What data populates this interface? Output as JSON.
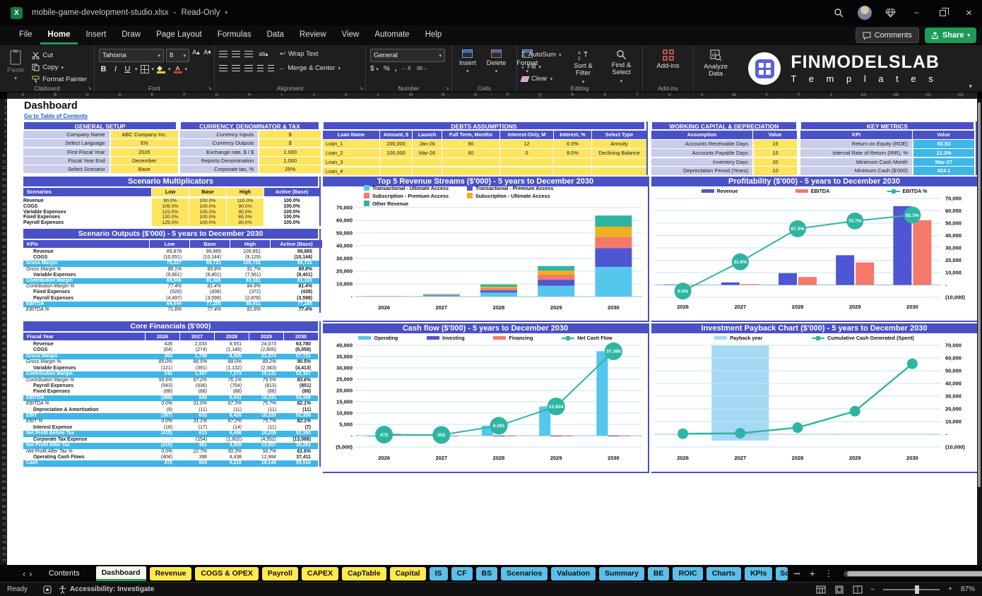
{
  "window": {
    "title": "mobile-game-development-studio.xlsx",
    "mode_label": "Read-Only",
    "comments": "Comments",
    "share": "Share"
  },
  "icons": {
    "chevron_down": "▾",
    "nav_left": "‹",
    "nav_right": "›",
    "more": "•••",
    "plus": "+",
    "kebab": "⋮",
    "minimize": "–",
    "close": "×",
    "dash": "-",
    "sigma": "Σ",
    "dollar": "$",
    "percent": "%",
    "comma": ",",
    "bold": "B",
    "italic": "I",
    "underline": "U",
    "font_up": "A▴",
    "font_down": "A▾",
    "dec_inc": "←.0",
    "dec_dec": ".00→",
    "wrap_arrow": "↩",
    "merge_arrow": "↔",
    "excel_x": "X",
    "fill_down": "⤓",
    "orientation": "ab▴"
  },
  "menu": {
    "items": [
      "File",
      "Home",
      "Insert",
      "Draw",
      "Page Layout",
      "Formulas",
      "Data",
      "Review",
      "View",
      "Automate",
      "Help"
    ],
    "active_index": 1
  },
  "ribbon": {
    "clipboard": {
      "group": "Clipboard",
      "paste": "Paste",
      "cut": "Cut",
      "copy": "Copy",
      "format_painter": "Format Painter"
    },
    "font": {
      "group": "Font",
      "font_name": "Tahoma",
      "font_size": "8"
    },
    "alignment": {
      "group": "Alignment",
      "wrap_text": "Wrap Text",
      "merge_center": "Merge & Center"
    },
    "number": {
      "group": "Number",
      "format": "General"
    },
    "cells": {
      "group": "Cells",
      "insert": "Insert",
      "delete": "Delete",
      "format": "Format"
    },
    "editing": {
      "group": "Editing",
      "autosum": "AutoSum",
      "fill": "Fill",
      "clear": "Clear",
      "sort_filter": "Sort & Filter",
      "find_select": "Find & Select"
    },
    "addins": {
      "group": "Add-ins",
      "addins": "Add-ins",
      "analyze": "Analyze Data"
    },
    "logo": {
      "line1": "FINMODELSLAB",
      "line2": "T e m p l a t e s"
    }
  },
  "grid": {
    "column_letters": [
      "A",
      "B",
      "C",
      "D",
      "E",
      "F",
      "G",
      "H",
      "I",
      "J",
      "K",
      "L",
      "M",
      "N",
      "O",
      "P",
      "Q",
      "R",
      "S",
      "T",
      "U",
      "V",
      "W",
      "X",
      "Y",
      "Z",
      "AA",
      "AB",
      "AC",
      "AD"
    ],
    "row_count": 77
  },
  "page": {
    "title": "Dashboard",
    "toc_link": "Go to Table of Contents"
  },
  "colors": {
    "accent_blue": "#4a51c6",
    "highlight_cyan": "#3db6e8",
    "input_yellow": "#ffe45e",
    "label_lavender": "#c9cde9",
    "teal": "#2eb5a2",
    "tab_yellow": "#ffe94d",
    "tab_blue": "#5ac0ea",
    "share_green": "#1f9b57"
  },
  "tables": {
    "general_setup": {
      "title": "GENERAL SETUP",
      "rows": [
        [
          "Company Name",
          "ABC Company Inc."
        ],
        [
          "Select Language",
          "EN"
        ],
        [
          "First Fiscal Year",
          "2026"
        ],
        [
          "Fiscal Year End",
          "December"
        ],
        [
          "Select Scenario",
          "Base"
        ]
      ]
    },
    "currency_tax": {
      "title": "CURRENCY, DENOMINATOR & TAX",
      "rows": [
        [
          "Currency Inputs",
          "$"
        ],
        [
          "Currency Outputs",
          "$"
        ],
        [
          "Exchange rate, $ / $",
          "1.000"
        ],
        [
          "Reports Denomination",
          "1,000"
        ],
        [
          "Corporate tax, %",
          "25%"
        ]
      ]
    },
    "debts": {
      "title": "DEBTS ASSUMPTIONS",
      "columns": [
        "Loan Name",
        "Amount, $",
        "Launch",
        "Full Term, Months",
        "Interest-Only, M",
        "Interest, %",
        "Select Type"
      ],
      "rows": [
        [
          "Loan_1",
          "200,000",
          "Jan-26",
          "90",
          "12",
          "6.0%",
          "Annuity"
        ],
        [
          "Loan_2",
          "100,000",
          "Mar-26",
          "60",
          "0",
          "8.0%",
          "Declining Balance"
        ],
        [
          "Loan_3",
          "",
          "",
          "",
          "",
          "",
          ""
        ],
        [
          "Loan_4",
          "",
          "",
          "",
          "",
          "",
          ""
        ]
      ]
    },
    "working_capital": {
      "title": "WORKING CAPITAL & DEPRECIATION",
      "columns": [
        "Assumption",
        "Value"
      ],
      "rows": [
        [
          "Accounts Receivable Days",
          "15"
        ],
        [
          "Accounts Payable Days",
          "15"
        ],
        [
          "Inventory Days",
          "20"
        ],
        [
          "Depreciation Period (Years)",
          "10"
        ]
      ]
    },
    "key_metrics": {
      "title": "KEY METRICS",
      "columns": [
        "KPI",
        "Value"
      ],
      "rows": [
        [
          "Return on Equity (ROE)",
          "82.53"
        ],
        [
          "Internal Rate of Return (IRR), %",
          "12.3%"
        ],
        [
          "Minimum Cash Month",
          "Mar-27"
        ],
        [
          "Minimum Cash ($'000)",
          "424.1"
        ]
      ]
    },
    "scenario_multiplicators": {
      "title": "Scenario Multiplicators",
      "header": [
        "Scenarios",
        "Low",
        "Base",
        "High",
        "Active (Base)"
      ],
      "rows": [
        [
          "Revenue",
          "90.0%",
          "100.0%",
          "110.0%",
          "100.0%"
        ],
        [
          "COGS",
          "105.0%",
          "100.0%",
          "90.0%",
          "100.0%"
        ],
        [
          "Variable Expenses",
          "115.0%",
          "100.0%",
          "90.0%",
          "100.0%"
        ],
        [
          "Fixed Expenses",
          "120.0%",
          "100.0%",
          "85.0%",
          "100.0%"
        ],
        [
          "Payroll Expenses",
          "125.0%",
          "100.0%",
          "80.0%",
          "100.0%"
        ]
      ]
    },
    "scenario_outputs": {
      "title": "Scenario Outputs ($'000) - 5 years to December 2030",
      "header": [
        "KPIs",
        "Low",
        "Base",
        "High",
        "Active (Base)"
      ],
      "rows": [
        {
          "label": "Revenue",
          "style": "n",
          "values": [
            "89,878",
            "99,865",
            "109,851",
            "99,865"
          ]
        },
        {
          "label": "COGS",
          "style": "n",
          "values": [
            "(10,651)",
            "(10,144)",
            "(9,129)",
            "(10,144)"
          ]
        },
        {
          "label": "Gross Margin",
          "style": "h",
          "values": [
            "79,227",
            "89,721",
            "100,722",
            "89,721"
          ]
        },
        {
          "label": "Gross Margin %",
          "style": "i",
          "values": [
            "88.1%",
            "89.8%",
            "91.7%",
            "89.8%"
          ]
        },
        {
          "label": "Variable Expenses",
          "style": "n",
          "values": [
            "(9,661)",
            "(8,401)",
            "(7,561)",
            "(8,401)"
          ]
        },
        {
          "label": "Contribution Margin",
          "style": "h",
          "values": [
            "69,566",
            "81,320",
            "93,161",
            "81,320"
          ]
        },
        {
          "label": "Contribution Margin %",
          "style": "i",
          "values": [
            "77.4%",
            "81.4%",
            "84.8%",
            "81.4%"
          ]
        },
        {
          "label": "Fixed Expenses",
          "style": "n",
          "values": [
            "(526)",
            "(438)",
            "(372)",
            "(438)"
          ]
        },
        {
          "label": "Payroll Expenses",
          "style": "n",
          "values": [
            "(4,497)",
            "(3,598)",
            "(2,878)",
            "(3,598)"
          ]
        },
        {
          "label": "EBITDA",
          "style": "h",
          "values": [
            "64,544",
            "77,285",
            "89,911",
            "77,285"
          ]
        },
        {
          "label": "EBITDA %",
          "style": "i",
          "values": [
            "71.8%",
            "77.4%",
            "81.8%",
            "77.4%"
          ]
        }
      ]
    },
    "core_financials": {
      "title": "Core Financials ($'000)",
      "header": [
        "Fiscal Year",
        "2026",
        "2027",
        "2028",
        "2029",
        "2030"
      ],
      "rows": [
        {
          "label": "Revenue",
          "style": "n",
          "values": [
            "428",
            "2,033",
            "9,551",
            "24,073",
            "63,780"
          ]
        },
        {
          "label": "COGS",
          "style": "n",
          "values": [
            "(64)",
            "(274)",
            "(1,146)",
            "(2,600)",
            "(6,059)"
          ]
        },
        {
          "label": "Gross Margin",
          "style": "h",
          "values": [
            "364",
            "1,758",
            "8,405",
            "21,474",
            "57,721"
          ]
        },
        {
          "label": "Gross Margin %",
          "style": "i",
          "values": [
            "85.0%",
            "86.5%",
            "88.0%",
            "89.2%",
            "90.5%"
          ]
        },
        {
          "label": "Variable Expenses",
          "style": "n",
          "values": [
            "(121)",
            "(391)",
            "(1,132)",
            "(2,343)",
            "(4,413)"
          ]
        },
        {
          "label": "Contribution Margin",
          "style": "h",
          "values": [
            "242",
            "1,367",
            "7,273",
            "19,131",
            "53,307"
          ]
        },
        {
          "label": "Contribution Margin %",
          "style": "i",
          "values": [
            "56.6%",
            "67.2%",
            "76.1%",
            "79.5%",
            "83.6%"
          ]
        },
        {
          "label": "Payroll Expenses",
          "style": "n",
          "values": [
            "(543)",
            "(636)",
            "(754)",
            "(813)",
            "(851)"
          ]
        },
        {
          "label": "Fixed Expenses",
          "style": "n",
          "values": [
            "(88)",
            "(88)",
            "(88)",
            "(88)",
            "(88)"
          ]
        },
        {
          "label": "EBITDA",
          "style": "h",
          "values": [
            "(388)",
            "643",
            "6,431",
            "18,231",
            "52,368"
          ]
        },
        {
          "label": "EBITDA %",
          "style": "i",
          "values": [
            "0.0%",
            "31.6%",
            "67.3%",
            "75.7%",
            "82.1%"
          ]
        },
        {
          "label": "Depreciation & Amortization",
          "style": "n",
          "values": [
            "(9)",
            "(11)",
            "(11)",
            "(11)",
            "(11)"
          ]
        },
        {
          "label": "EBIT",
          "style": "h",
          "values": [
            "(397)",
            "632",
            "6,420",
            "18,220",
            "52,358"
          ]
        },
        {
          "label": "EBIT %",
          "style": "i",
          "values": [
            "0.0%",
            "31.1%",
            "67.2%",
            "75.7%",
            "82.1%"
          ]
        },
        {
          "label": "Interest Expense",
          "style": "n",
          "values": [
            "(18)",
            "(17)",
            "(14)",
            "(11)",
            "(7)"
          ]
        },
        {
          "label": "Net Profit Before Tax",
          "style": "h",
          "values": [
            "(415)",
            "615",
            "6,406",
            "18,209",
            "52,350"
          ]
        },
        {
          "label": "Corporate Tax Expense",
          "style": "n",
          "values": [
            "-",
            "(154)",
            "(1,602)",
            "(4,552)",
            "(13,088)"
          ]
        },
        {
          "label": "Net Profit After Tax",
          "style": "h",
          "values": [
            "(415)",
            "461",
            "4,805",
            "13,657",
            "39,263"
          ]
        },
        {
          "label": "Net Profit After Tax %",
          "style": "i",
          "values": [
            "0.0%",
            "22.7%",
            "50.3%",
            "56.7%",
            "61.6%"
          ]
        },
        {
          "label": "Operating Cash Flows",
          "style": "n",
          "values": [
            "(404)",
            "398",
            "4,438",
            "12,984",
            "37,411"
          ]
        },
        {
          "label": "Cash",
          "style": "h",
          "values": [
            "472",
            "824",
            "5,215",
            "18,149",
            "55,510"
          ]
        }
      ]
    }
  },
  "chart_data": [
    {
      "type": "bar",
      "subtype": "stacked",
      "title": "Top 5 Revenue Streams ($'000) - 5 years to December 2030",
      "categories": [
        "2026",
        "2027",
        "2028",
        "2029",
        "2030"
      ],
      "series": [
        {
          "name": "Transactional - Ultimate Access",
          "color": "#55c7ec",
          "values": [
            150,
            700,
            3200,
            8500,
            23300
          ]
        },
        {
          "name": "Transactional - Premium Access",
          "color": "#4f56d3",
          "values": [
            90,
            400,
            1700,
            4800,
            14900
          ]
        },
        {
          "name": "Subscription - Premium Access",
          "color": "#f4796b",
          "values": [
            70,
            350,
            1500,
            3900,
            8900
          ]
        },
        {
          "name": "Subscription - Ultimate Access",
          "color": "#f2b01e",
          "values": [
            60,
            300,
            1400,
            3300,
            7900
          ]
        },
        {
          "name": "Other Revenue",
          "color": "#2eb5a2",
          "values": [
            58,
            283,
            1751,
            3573,
            8780
          ]
        }
      ],
      "ylim": [
        0,
        70000
      ],
      "ytick_step": 10000,
      "axis_side": "left",
      "grid": true,
      "legend_position": "top"
    },
    {
      "type": "bar",
      "subtype": "grouped-with-line",
      "title": "Profitability ($'000) - 5 years to December 2030",
      "categories": [
        "2026",
        "2027",
        "2028",
        "2029",
        "2030"
      ],
      "series": [
        {
          "name": "Revenue",
          "color": "#4f56d3",
          "values": [
            428,
            2033,
            9551,
            24073,
            63780
          ]
        },
        {
          "name": "EBITDA",
          "color": "#f4796b",
          "values": [
            -388,
            643,
            6431,
            18231,
            52368
          ]
        }
      ],
      "line": {
        "name": "EBITDA %",
        "color": "#2eb5a2",
        "values_pct": [
          0.0,
          31.6,
          67.3,
          75.7,
          82.1
        ],
        "labels": [
          "0.0%",
          "31.6%",
          "67.3%",
          "75.7%",
          "82.1%"
        ]
      },
      "ylim": [
        -10000,
        70000
      ],
      "ytick_step": 10000,
      "axis_side": "right",
      "grid": true,
      "legend_position": "top"
    },
    {
      "type": "bar",
      "subtype": "grouped-with-line",
      "title": "Cash flow ($'000) - 5 years to December 2030",
      "categories": [
        "2026",
        "2027",
        "2028",
        "2029",
        "2030"
      ],
      "series": [
        {
          "name": "Operating",
          "color": "#55c7ec",
          "values": [
            -404,
            398,
            4438,
            12984,
            37411
          ]
        },
        {
          "name": "Investing",
          "color": "#4f56d3",
          "values": [
            -9,
            -11,
            -11,
            -11,
            -11
          ]
        },
        {
          "name": "Financing",
          "color": "#f4796b",
          "values": [
            885,
            -35,
            -36,
            -39,
            -40
          ]
        }
      ],
      "line": {
        "name": "Net Cash Flow",
        "color": "#2eb5a2",
        "values": [
          472,
          352,
          4391,
          12934,
          37360
        ],
        "labels": [
          "472",
          "352",
          "4,391",
          "12,934",
          "37,360"
        ]
      },
      "ylim": [
        -5000,
        40000
      ],
      "ytick_step": 5000,
      "axis_side": "left",
      "grid": true,
      "legend_position": "top"
    },
    {
      "type": "line",
      "subtype": "payback",
      "title": "Investment Payback Chart ($'000) - 5 years to December 2030",
      "categories": [
        "2026",
        "2027",
        "2028",
        "2029",
        "2030"
      ],
      "payback_band_category": "2027",
      "band_name": "Payback year",
      "band_color": "#a6daf4",
      "line": {
        "name": "Cumulative Cash Generated (Spent)",
        "color": "#2eb5a2",
        "values": [
          472,
          824,
          5215,
          18149,
          55510
        ]
      },
      "ylim": [
        -10000,
        70000
      ],
      "ytick_step": 10000,
      "axis_side": "right",
      "grid": true,
      "legend_position": "top"
    }
  ],
  "sheet_tabs": {
    "tabs": [
      {
        "label": "Contents",
        "type": "plain"
      },
      {
        "label": "Dashboard",
        "type": "active"
      },
      {
        "label": "Revenue",
        "type": "yellow"
      },
      {
        "label": "COGS & OPEX",
        "type": "yellow"
      },
      {
        "label": "Payroll",
        "type": "yellow"
      },
      {
        "label": "CAPEX",
        "type": "yellow"
      },
      {
        "label": "CapTable",
        "type": "yellow"
      },
      {
        "label": "Capital",
        "type": "yellow"
      },
      {
        "label": "IS",
        "type": "blue"
      },
      {
        "label": "CF",
        "type": "blue"
      },
      {
        "label": "BS",
        "type": "blue"
      },
      {
        "label": "Scenarios",
        "type": "blue"
      },
      {
        "label": "Valuation",
        "type": "blue"
      },
      {
        "label": "Summary",
        "type": "blue"
      },
      {
        "label": "BE",
        "type": "blue"
      },
      {
        "label": "ROIC",
        "type": "blue"
      },
      {
        "label": "Charts",
        "type": "blue"
      },
      {
        "label": "KPIs",
        "type": "blue"
      },
      {
        "label": "So",
        "type": "blue clip"
      }
    ]
  },
  "status_bar": {
    "ready": "Ready",
    "accessibility": "Accessibility: Investigate",
    "zoom": "87%"
  }
}
